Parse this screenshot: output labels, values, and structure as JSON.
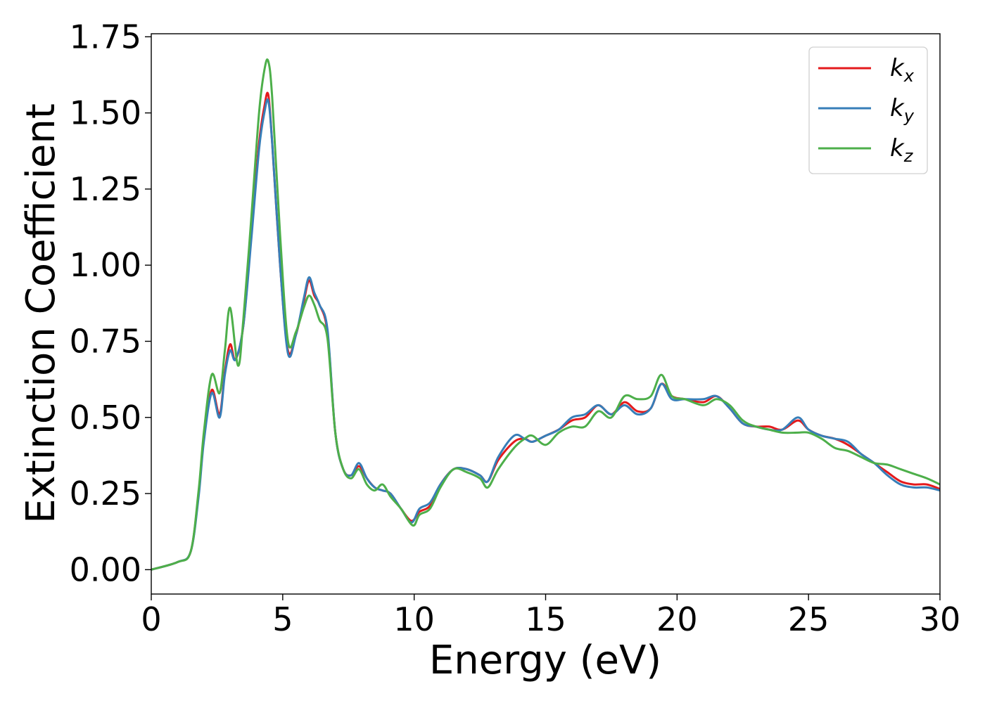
{
  "chart_data": {
    "type": "line",
    "xlabel": "Energy (eV)",
    "ylabel": "Extinction Coefficient",
    "xlim": [
      0,
      30
    ],
    "ylim": [
      -0.08,
      1.76
    ],
    "xticks": [
      0,
      5,
      10,
      15,
      20,
      25,
      30
    ],
    "yticks": [
      0.0,
      0.25,
      0.5,
      0.75,
      1.0,
      1.25,
      1.5,
      1.75
    ],
    "xtick_labels": [
      "0",
      "5",
      "10",
      "15",
      "20",
      "25",
      "30"
    ],
    "ytick_labels": [
      "0.00",
      "0.25",
      "0.50",
      "0.75",
      "1.00",
      "1.25",
      "1.50",
      "1.75"
    ],
    "grid": false,
    "legend_position": "top-right",
    "series": [
      {
        "name": "k",
        "subscript": "x",
        "color": "#e41a1c",
        "x": [
          0,
          1,
          1.5,
          1.8,
          2.0,
          2.3,
          2.6,
          2.8,
          3.0,
          3.2,
          3.5,
          3.8,
          4.1,
          4.3,
          4.45,
          4.6,
          4.9,
          5.2,
          5.5,
          5.8,
          6.0,
          6.2,
          6.4,
          6.7,
          7.0,
          7.3,
          7.6,
          7.9,
          8.2,
          8.5,
          8.8,
          9.1,
          9.5,
          9.9,
          10.2,
          10.6,
          11.0,
          11.5,
          12.0,
          12.5,
          12.8,
          13.2,
          13.8,
          14.2,
          14.5,
          15.0,
          15.5,
          16.0,
          16.5,
          17.0,
          17.5,
          18.0,
          18.5,
          19.0,
          19.4,
          19.8,
          20.3,
          21.0,
          21.5,
          22.0,
          22.5,
          23.0,
          23.5,
          24.0,
          24.6,
          25.0,
          25.5,
          26.0,
          26.5,
          27.0,
          27.5,
          28.0,
          28.5,
          29.0,
          29.5,
          30.0
        ],
        "y": [
          0.0,
          0.025,
          0.06,
          0.25,
          0.43,
          0.59,
          0.51,
          0.65,
          0.74,
          0.69,
          0.8,
          1.1,
          1.4,
          1.52,
          1.56,
          1.4,
          1.0,
          0.72,
          0.77,
          0.88,
          0.95,
          0.9,
          0.87,
          0.78,
          0.45,
          0.33,
          0.31,
          0.34,
          0.3,
          0.27,
          0.26,
          0.25,
          0.2,
          0.16,
          0.19,
          0.21,
          0.28,
          0.33,
          0.33,
          0.31,
          0.29,
          0.36,
          0.42,
          0.43,
          0.42,
          0.44,
          0.46,
          0.49,
          0.5,
          0.54,
          0.51,
          0.55,
          0.52,
          0.53,
          0.61,
          0.57,
          0.56,
          0.55,
          0.57,
          0.53,
          0.48,
          0.47,
          0.47,
          0.46,
          0.49,
          0.46,
          0.44,
          0.43,
          0.41,
          0.38,
          0.35,
          0.32,
          0.29,
          0.28,
          0.28,
          0.265
        ]
      },
      {
        "name": "k",
        "subscript": "y",
        "color": "#377eb8",
        "x": [
          0,
          1,
          1.5,
          1.8,
          2.0,
          2.3,
          2.6,
          2.8,
          3.0,
          3.2,
          3.5,
          3.8,
          4.1,
          4.3,
          4.45,
          4.6,
          4.9,
          5.2,
          5.5,
          5.8,
          6.0,
          6.2,
          6.4,
          6.7,
          7.0,
          7.3,
          7.6,
          7.9,
          8.2,
          8.5,
          8.8,
          9.1,
          9.5,
          9.9,
          10.2,
          10.6,
          11.0,
          11.5,
          12.0,
          12.5,
          12.8,
          13.2,
          13.8,
          14.2,
          14.5,
          15.0,
          15.5,
          16.0,
          16.5,
          17.0,
          17.5,
          18.0,
          18.5,
          19.0,
          19.4,
          19.8,
          20.3,
          21.0,
          21.5,
          22.0,
          22.5,
          23.0,
          23.5,
          24.0,
          24.6,
          25.0,
          25.5,
          26.0,
          26.5,
          27.0,
          27.5,
          28.0,
          28.5,
          29.0,
          29.5,
          30.0
        ],
        "y": [
          0.0,
          0.025,
          0.06,
          0.24,
          0.42,
          0.58,
          0.5,
          0.64,
          0.72,
          0.69,
          0.8,
          1.08,
          1.38,
          1.5,
          1.54,
          1.4,
          1.0,
          0.71,
          0.77,
          0.89,
          0.96,
          0.91,
          0.87,
          0.79,
          0.45,
          0.33,
          0.31,
          0.35,
          0.3,
          0.27,
          0.26,
          0.25,
          0.2,
          0.155,
          0.2,
          0.22,
          0.28,
          0.33,
          0.33,
          0.31,
          0.29,
          0.37,
          0.44,
          0.43,
          0.42,
          0.44,
          0.46,
          0.5,
          0.51,
          0.54,
          0.51,
          0.54,
          0.51,
          0.53,
          0.61,
          0.56,
          0.56,
          0.56,
          0.57,
          0.53,
          0.48,
          0.47,
          0.46,
          0.46,
          0.5,
          0.46,
          0.44,
          0.43,
          0.42,
          0.38,
          0.35,
          0.31,
          0.28,
          0.27,
          0.27,
          0.26
        ]
      },
      {
        "name": "k",
        "subscript": "z",
        "color": "#4daf4a",
        "x": [
          0,
          1,
          1.5,
          1.8,
          2.0,
          2.3,
          2.6,
          2.8,
          3.0,
          3.3,
          3.5,
          3.8,
          4.1,
          4.3,
          4.45,
          4.6,
          4.9,
          5.2,
          5.5,
          5.8,
          6.0,
          6.2,
          6.4,
          6.7,
          7.0,
          7.3,
          7.6,
          7.9,
          8.2,
          8.5,
          8.8,
          9.1,
          9.5,
          9.95,
          10.2,
          10.6,
          11.0,
          11.5,
          12.0,
          12.5,
          12.8,
          13.2,
          13.8,
          14.2,
          14.5,
          15.0,
          15.5,
          16.0,
          16.5,
          17.0,
          17.5,
          18.0,
          18.5,
          19.0,
          19.4,
          19.8,
          20.3,
          21.0,
          21.5,
          22.0,
          22.5,
          23.0,
          23.5,
          24.0,
          24.6,
          25.0,
          25.5,
          26.0,
          26.5,
          27.0,
          27.5,
          28.0,
          28.5,
          29.0,
          29.5,
          30.0
        ],
        "y": [
          0.0,
          0.025,
          0.06,
          0.26,
          0.45,
          0.64,
          0.58,
          0.72,
          0.86,
          0.67,
          0.82,
          1.15,
          1.5,
          1.64,
          1.67,
          1.55,
          1.1,
          0.75,
          0.78,
          0.86,
          0.9,
          0.87,
          0.82,
          0.76,
          0.45,
          0.33,
          0.3,
          0.33,
          0.28,
          0.26,
          0.28,
          0.24,
          0.2,
          0.145,
          0.18,
          0.2,
          0.27,
          0.33,
          0.32,
          0.3,
          0.27,
          0.33,
          0.4,
          0.43,
          0.44,
          0.41,
          0.45,
          0.47,
          0.47,
          0.52,
          0.5,
          0.57,
          0.56,
          0.57,
          0.64,
          0.57,
          0.56,
          0.54,
          0.56,
          0.54,
          0.49,
          0.47,
          0.46,
          0.45,
          0.45,
          0.45,
          0.43,
          0.4,
          0.39,
          0.37,
          0.35,
          0.345,
          0.33,
          0.315,
          0.3,
          0.28
        ]
      }
    ]
  }
}
